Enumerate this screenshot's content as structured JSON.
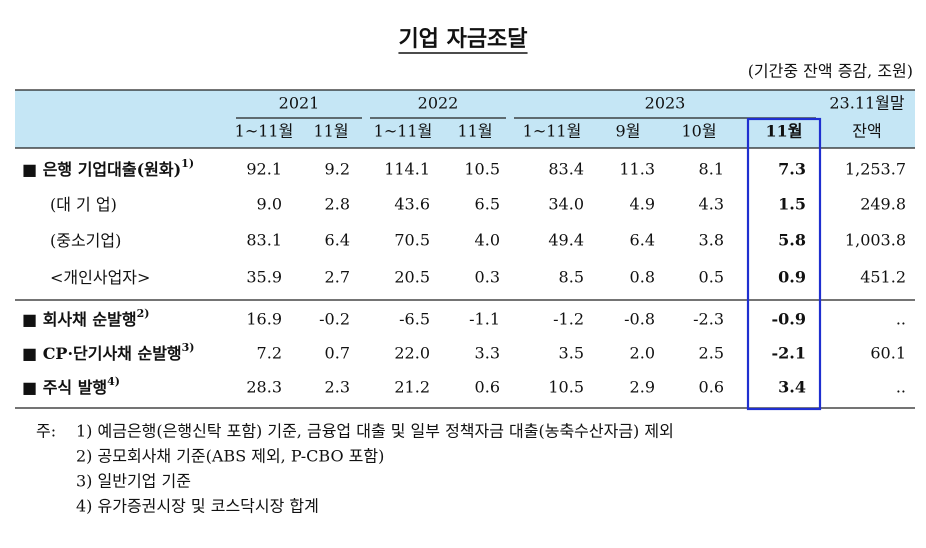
{
  "title": "기업 자금조달",
  "unit": "(기간중 잔액 증감, 조원)",
  "table": {
    "year_headers": [
      "2021",
      "2022",
      "2023"
    ],
    "last_header": [
      "23.11월말",
      "잔액"
    ],
    "sub_headers": [
      "1~11월",
      "11월",
      "1~11월",
      "11월",
      "1~11월",
      "9월",
      "10월",
      "11월"
    ],
    "rows": [
      {
        "label": "■ 은행 기업대출(원화)",
        "note": "1)",
        "cells": [
          "92.1",
          "9.2",
          "114.1",
          "10.5",
          "83.4",
          "11.3",
          "8.1",
          "7.3",
          "1,253.7"
        ]
      },
      {
        "label": "(대 기 업)",
        "cells": [
          "9.0",
          "2.8",
          "43.6",
          "6.5",
          "34.0",
          "4.9",
          "4.3",
          "1.5",
          "249.8"
        ]
      },
      {
        "label": "(중소기업)",
        "cells": [
          "83.1",
          "6.4",
          "70.5",
          "4.0",
          "49.4",
          "6.4",
          "3.8",
          "5.8",
          "1,003.8"
        ]
      },
      {
        "label": "<개인사업자>",
        "cells": [
          "35.9",
          "2.7",
          "20.5",
          "0.3",
          "8.5",
          "0.8",
          "0.5",
          "0.9",
          "451.2"
        ]
      },
      {
        "label": "■ 회사채 순발행",
        "note": "2)",
        "cells": [
          "16.9",
          "-0.2",
          "-6.5",
          "-1.1",
          "-1.2",
          "-0.8",
          "-2.3",
          "-0.9",
          ".."
        ]
      },
      {
        "label": "■ CP·단기사채 순발행",
        "note": "3)",
        "cells": [
          "7.2",
          "0.7",
          "22.0",
          "3.3",
          "3.5",
          "2.0",
          "2.5",
          "-2.1",
          "60.1"
        ]
      },
      {
        "label": "■ 주식 발행",
        "note": "4)",
        "cells": [
          "28.3",
          "2.3",
          "21.2",
          "0.6",
          "10.5",
          "2.9",
          "0.6",
          "3.4",
          ".."
        ]
      }
    ]
  },
  "notes": {
    "prefix": "주:",
    "items": [
      "1) 예금은행(은행신탁 포함) 기준, 금융업 대출 및 일부 정책자금 대출(농축수산자금) 제외",
      "2) 공모회사채 기준(ABS 제외, P-CBO 포함)",
      "3) 일반기업 기준",
      "4) 유가증권시장 및 코스닥시장 합계"
    ]
  }
}
